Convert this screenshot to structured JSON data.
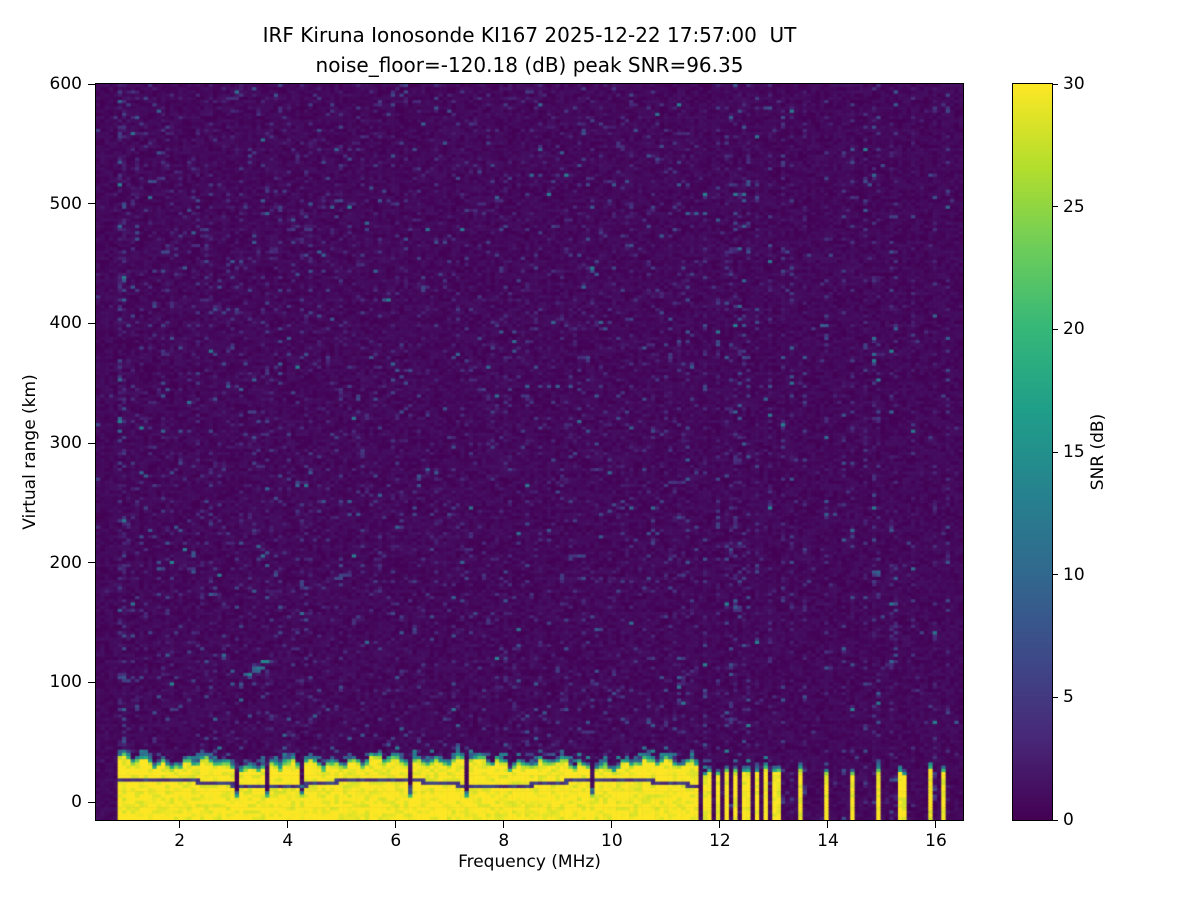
{
  "figure": {
    "background": "#ffffff"
  },
  "chart_data": {
    "type": "heatmap",
    "title": "IRF Kiruna Ionosonde KI167 2025-12-22 17:57:00  UT",
    "subtitle": "noise_floor=-120.18 (dB) peak SNR=96.35",
    "station": "IRF Kiruna Ionosonde KI167",
    "timestamp_ut": "2025-12-22 17:57:00",
    "noise_floor_db": -120.18,
    "peak_snr_db": 96.35,
    "xlabel": "Frequency (MHz)",
    "ylabel": "Virtual range (km)",
    "xlim": [
      0.45,
      16.5
    ],
    "ylim": [
      -15,
      600
    ],
    "xticks": [
      2,
      4,
      6,
      8,
      10,
      12,
      14,
      16
    ],
    "yticks": [
      0,
      100,
      200,
      300,
      400,
      500,
      600
    ],
    "colorbar": {
      "label": "SNR (dB)",
      "min": 0,
      "max": 30,
      "ticks": [
        0,
        5,
        10,
        15,
        20,
        25,
        30
      ],
      "colormap": "viridis"
    },
    "features": {
      "background_snr_db": [
        0,
        1.4
      ],
      "noise_speckle": {
        "probability": 0.12,
        "snr_range_db": [
          2,
          13
        ]
      },
      "dense_noise_column_mhz": [
        0.88,
        1.05
      ],
      "ground_echo": {
        "freq_start_mhz": 0.88,
        "freq_end_mhz": 11.62,
        "top_km_min": 27,
        "top_km_max": 42,
        "snr_db": 30,
        "dark_line_km": 16
      },
      "echo_notch_freqs_mhz": [
        3.05,
        3.65,
        4.3,
        6.3,
        7.35,
        9.65
      ],
      "weak_trace": {
        "freq_start_mhz": 3.1,
        "freq_end_mhz": 3.7,
        "range_start_km": 100,
        "range_end_km": 120
      },
      "stripe_freqs_mhz": [
        11.7,
        11.82,
        11.97,
        12.12,
        12.26,
        12.42,
        12.56,
        12.72,
        12.86,
        13.0,
        13.12,
        13.52,
        13.97,
        14.42,
        14.9,
        15.38,
        15.9,
        16.17
      ],
      "stripe_half_width_mhz": 0.045,
      "rfi_column_freqs_mhz": [
        11.7,
        11.95,
        12.2,
        12.45,
        12.7,
        12.95,
        13.15,
        13.55,
        14.0,
        14.45,
        14.9,
        15.25,
        15.6,
        15.95,
        16.2
      ]
    }
  }
}
